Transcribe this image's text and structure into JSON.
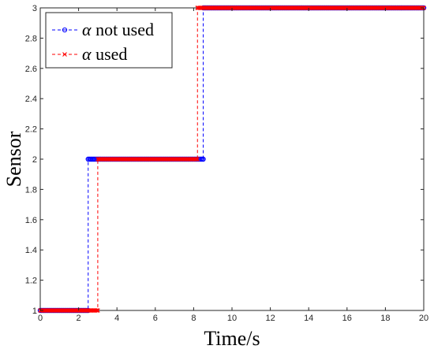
{
  "chart_data": {
    "type": "line",
    "xlabel": "Time/s",
    "ylabel": "Sensor",
    "xlim": [
      0,
      20
    ],
    "ylim": [
      1,
      3
    ],
    "xticks": [
      "0",
      "2",
      "4",
      "6",
      "8",
      "10",
      "12",
      "14",
      "16",
      "18",
      "20"
    ],
    "yticks": [
      "1",
      "1.2",
      "1.4",
      "1.6",
      "1.8",
      "2",
      "2.2",
      "2.4",
      "2.6",
      "2.8",
      "3"
    ],
    "grid": false,
    "legend_position": "top-left",
    "series": [
      {
        "legend_symbol": "α",
        "legend_text": "not used",
        "color": "#0000ff",
        "line_style": "dashed",
        "marker": "circle",
        "x": [
          0,
          2.5,
          2.5,
          8.5,
          8.5,
          20
        ],
        "y": [
          1,
          1,
          2,
          2,
          3,
          3
        ]
      },
      {
        "legend_symbol": "α",
        "legend_text": "used",
        "color": "#ff0000",
        "line_style": "dashed",
        "marker": "x",
        "x": [
          0,
          3,
          3,
          8.2,
          8.2,
          20
        ],
        "y": [
          1,
          1,
          2,
          2,
          3,
          3
        ]
      }
    ]
  }
}
